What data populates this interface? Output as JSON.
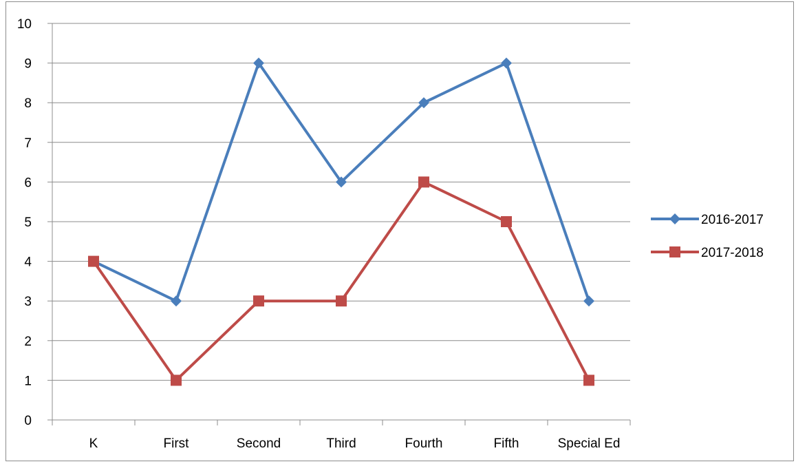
{
  "chart_data": {
    "type": "line",
    "categories": [
      "K",
      "First",
      "Second",
      "Third",
      "Fourth",
      "Fifth",
      "Special Ed"
    ],
    "series": [
      {
        "name": "2016-2017",
        "values": [
          4,
          3,
          9,
          6,
          8,
          9,
          3
        ],
        "color": "#4a7ebb",
        "marker": "diamond"
      },
      {
        "name": "2017-2018",
        "values": [
          4,
          1,
          3,
          3,
          6,
          5,
          1
        ],
        "color": "#be4b48",
        "marker": "square"
      }
    ],
    "title": "",
    "xlabel": "",
    "ylabel": "",
    "ylim": [
      0,
      10
    ],
    "yticks": [
      "0",
      "1",
      "2",
      "3",
      "4",
      "5",
      "6",
      "7",
      "8",
      "9",
      "10"
    ],
    "grid": true,
    "legend_position": "right"
  }
}
